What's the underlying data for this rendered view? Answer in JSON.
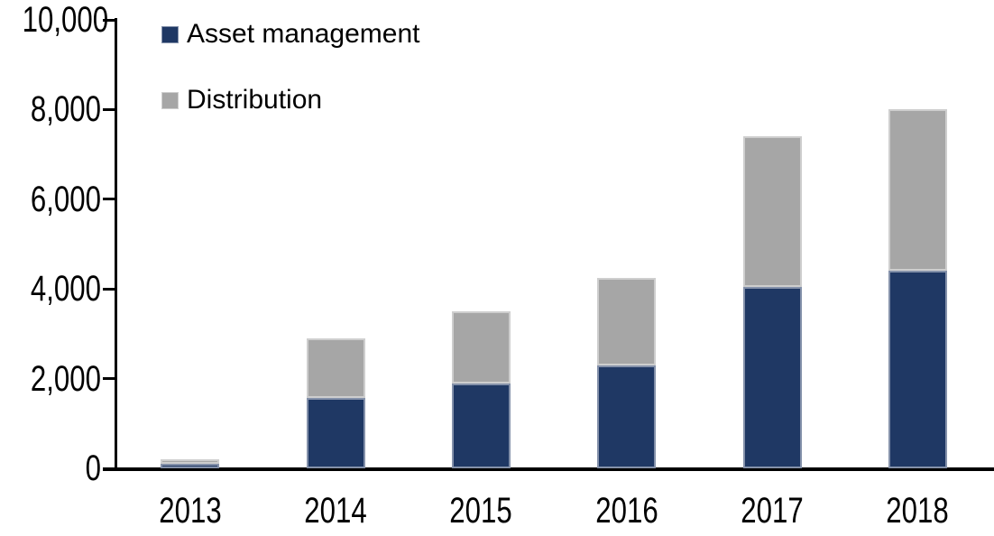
{
  "chart_data": {
    "type": "bar",
    "stacked": true,
    "title": "",
    "categories": [
      "2013",
      "2014",
      "2015",
      "2016",
      "2017",
      "2018"
    ],
    "series": [
      {
        "name": "Asset management",
        "color": "#1F3864",
        "values": [
          100,
          1560,
          1900,
          2300,
          4050,
          4400
        ]
      },
      {
        "name": "Distribution",
        "color": "#A6A6A6",
        "values": [
          100,
          1330,
          1600,
          1950,
          3350,
          3600
        ]
      }
    ],
    "totals": [
      200,
      2890,
      3500,
      4250,
      7400,
      8000
    ],
    "xlabel": "",
    "ylabel": "",
    "ylim": [
      0,
      10000
    ],
    "y_ticks": [
      0,
      2000,
      4000,
      6000,
      8000,
      10000
    ],
    "y_tick_labels": [
      "0",
      "2,000",
      "4,000",
      "6,000",
      "8,000",
      "10,000"
    ],
    "grid": false,
    "legend_position": "top-left-inside",
    "axis_color": "#000000",
    "background_color": "#FFFFFF"
  }
}
